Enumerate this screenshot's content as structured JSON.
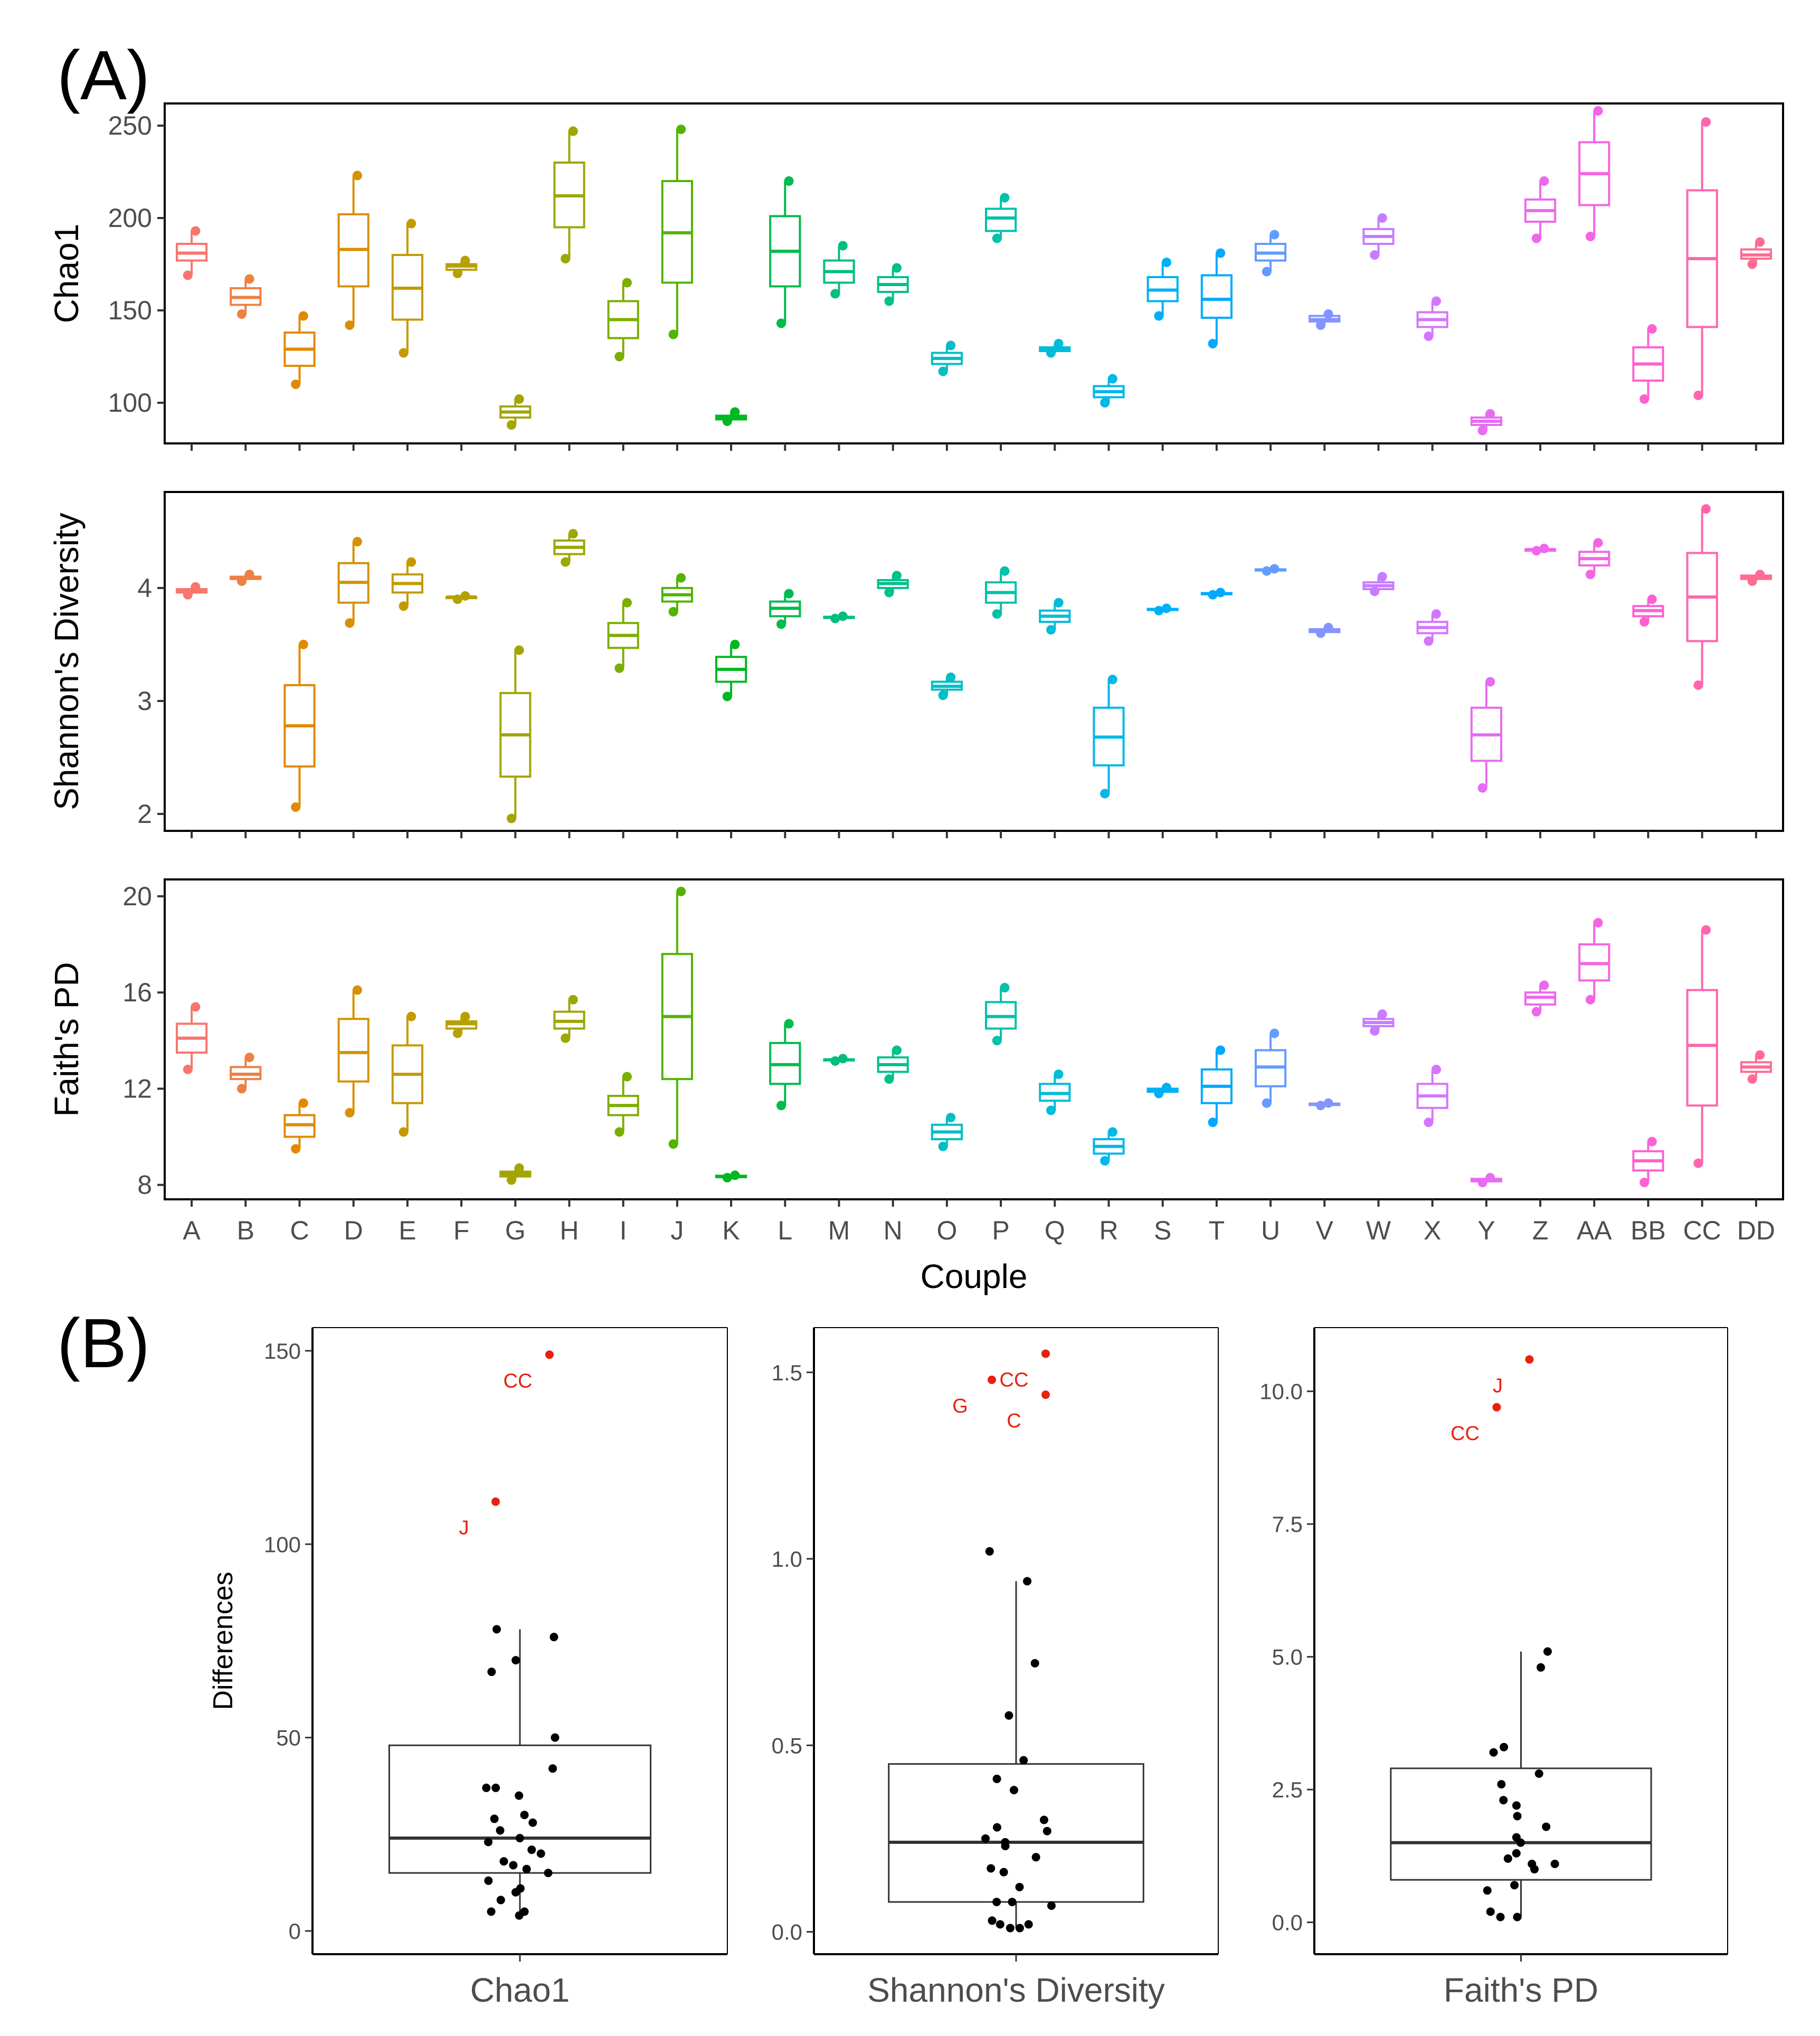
{
  "panel_labels": {
    "a": "(A)",
    "b": "(B)"
  },
  "chart_data": [
    {
      "type": "box",
      "panel": "A",
      "xlabel": "Couple",
      "categories": [
        "A",
        "B",
        "C",
        "D",
        "E",
        "F",
        "G",
        "H",
        "I",
        "J",
        "K",
        "L",
        "M",
        "N",
        "O",
        "P",
        "Q",
        "R",
        "S",
        "T",
        "U",
        "V",
        "W",
        "X",
        "Y",
        "Z",
        "AA",
        "BB",
        "CC",
        "DD"
      ],
      "colors": [
        "#F8766D",
        "#EE8043",
        "#E18A00",
        "#D89000",
        "#C49A00",
        "#B7A100",
        "#A3A500",
        "#9CA700",
        "#7CAE00",
        "#53B400",
        "#00B81F",
        "#00BB4E",
        "#00BF7D",
        "#00C08B",
        "#00BFC4",
        "#00C1A9",
        "#00BCD8",
        "#00B8E7",
        "#00B0F6",
        "#00A9FF",
        "#619CFF",
        "#8494FF",
        "#C77CFF",
        "#D575FE",
        "#E76BF3",
        "#ED68ED",
        "#F564E3",
        "#FD61D1",
        "#FF65AE",
        "#FF6C91"
      ],
      "facets": [
        {
          "ylabel": "Chao1",
          "ylim": [
            78,
            262
          ],
          "yticks": [
            100,
            150,
            200,
            250
          ],
          "ytick_labels": [
            "100",
            "150",
            "200",
            "250"
          ],
          "boxes": [
            [
              169,
              177,
              181,
              186,
              193
            ],
            [
              148,
              153,
              157,
              162,
              167
            ],
            [
              110,
              120,
              129,
              138,
              147
            ],
            [
              142,
              163,
              183,
              202,
              223
            ],
            [
              127,
              145,
              162,
              180,
              197
            ],
            [
              170,
              172,
              174,
              175,
              177
            ],
            [
              88,
              92,
              95,
              98,
              102
            ],
            [
              178,
              195,
              212,
              230,
              247
            ],
            [
              125,
              135,
              145,
              155,
              165
            ],
            [
              137,
              165,
              192,
              220,
              248
            ],
            [
              90,
              91,
              92,
              93,
              95
            ],
            [
              143,
              163,
              182,
              201,
              220
            ],
            [
              159,
              165,
              171,
              177,
              185
            ],
            [
              155,
              160,
              164,
              168,
              173
            ],
            [
              117,
              121,
              124,
              127,
              131
            ],
            [
              189,
              193,
              200,
              205,
              211
            ],
            [
              127,
              128,
              129,
              130,
              132
            ],
            [
              100,
              103,
              106,
              109,
              113
            ],
            [
              147,
              155,
              161,
              168,
              176
            ],
            [
              132,
              146,
              156,
              169,
              181
            ],
            [
              171,
              177,
              181,
              186,
              191
            ],
            [
              142,
              144,
              145,
              147,
              148
            ],
            [
              180,
              186,
              190,
              194,
              200
            ],
            [
              136,
              141,
              145,
              149,
              155
            ],
            [
              85,
              88,
              90,
              92,
              94
            ],
            [
              189,
              198,
              204,
              210,
              220
            ],
            [
              190,
              207,
              224,
              241,
              258
            ],
            [
              102,
              112,
              121,
              130,
              140
            ],
            [
              104,
              141,
              178,
              215,
              252
            ],
            [
              175,
              178,
              180,
              183,
              187
            ]
          ]
        },
        {
          "ylabel": "Shannon's Diversity",
          "ylim": [
            1.85,
            4.85
          ],
          "yticks": [
            2,
            3,
            4
          ],
          "ytick_labels": [
            "2",
            "3",
            "4"
          ],
          "boxes": [
            [
              3.94,
              3.96,
              3.98,
              3.99,
              4.01
            ],
            [
              4.06,
              4.08,
              4.09,
              4.1,
              4.12
            ],
            [
              2.06,
              2.42,
              2.78,
              3.14,
              3.5
            ],
            [
              3.69,
              3.87,
              4.05,
              4.22,
              4.41
            ],
            [
              3.84,
              3.96,
              4.04,
              4.12,
              4.23
            ],
            [
              3.9,
              3.91,
              3.92,
              3.92,
              3.93
            ],
            [
              1.96,
              2.33,
              2.7,
              3.07,
              3.45
            ],
            [
              4.23,
              4.3,
              4.36,
              4.42,
              4.48
            ],
            [
              3.29,
              3.47,
              3.58,
              3.69,
              3.87
            ],
            [
              3.79,
              3.88,
              3.94,
              4.0,
              4.09
            ],
            [
              3.04,
              3.17,
              3.28,
              3.39,
              3.5
            ],
            [
              3.68,
              3.75,
              3.82,
              3.88,
              3.95
            ],
            [
              3.73,
              3.735,
              3.74,
              3.745,
              3.75
            ],
            [
              3.96,
              4.0,
              4.04,
              4.07,
              4.11
            ],
            [
              3.05,
              3.1,
              3.13,
              3.17,
              3.21
            ],
            [
              3.77,
              3.87,
              3.96,
              4.05,
              4.15
            ],
            [
              3.63,
              3.7,
              3.75,
              3.8,
              3.87
            ],
            [
              2.18,
              2.43,
              2.68,
              2.94,
              3.19
            ],
            [
              3.8,
              3.805,
              3.81,
              3.815,
              3.82
            ],
            [
              3.94,
              3.945,
              3.95,
              3.955,
              3.96
            ],
            [
              4.15,
              4.155,
              4.16,
              4.165,
              4.17
            ],
            [
              3.6,
              3.61,
              3.62,
              3.635,
              3.65
            ],
            [
              3.97,
              3.99,
              4.02,
              4.05,
              4.1
            ],
            [
              3.53,
              3.6,
              3.65,
              3.7,
              3.77
            ],
            [
              2.23,
              2.47,
              2.7,
              2.94,
              3.17
            ],
            [
              4.33,
              4.33,
              4.34,
              4.34,
              4.35
            ],
            [
              4.12,
              4.2,
              4.26,
              4.32,
              4.4
            ],
            [
              3.7,
              3.75,
              3.8,
              3.84,
              3.9
            ],
            [
              3.14,
              3.53,
              3.92,
              4.31,
              4.7
            ],
            [
              4.06,
              4.08,
              4.1,
              4.11,
              4.12
            ]
          ]
        },
        {
          "ylabel": "Faith's PD",
          "ylim": [
            7.4,
            20.7
          ],
          "yticks": [
            8,
            12,
            16,
            20
          ],
          "ytick_labels": [
            "8",
            "12",
            "16",
            "20"
          ],
          "boxes": [
            [
              12.8,
              13.5,
              14.1,
              14.7,
              15.4
            ],
            [
              12.0,
              12.4,
              12.6,
              12.9,
              13.3
            ],
            [
              9.5,
              10.0,
              10.5,
              10.9,
              11.4
            ],
            [
              11.0,
              12.3,
              13.5,
              14.9,
              16.1
            ],
            [
              10.2,
              11.4,
              12.6,
              13.8,
              15.0
            ],
            [
              14.3,
              14.5,
              14.7,
              14.8,
              15.0
            ],
            [
              8.2,
              8.35,
              8.45,
              8.55,
              8.7
            ],
            [
              14.1,
              14.5,
              14.8,
              15.2,
              15.7
            ],
            [
              10.2,
              10.9,
              11.3,
              11.7,
              12.5
            ],
            [
              9.7,
              12.4,
              15.0,
              17.6,
              20.2
            ],
            [
              8.3,
              8.32,
              8.35,
              8.38,
              8.4
            ],
            [
              11.3,
              12.2,
              13.0,
              13.9,
              14.7
            ],
            [
              13.15,
              13.18,
              13.2,
              13.22,
              13.25
            ],
            [
              12.4,
              12.7,
              13.0,
              13.3,
              13.6
            ],
            [
              9.6,
              9.9,
              10.2,
              10.5,
              10.8
            ],
            [
              14.0,
              14.5,
              15.0,
              15.6,
              16.2
            ],
            [
              11.1,
              11.5,
              11.8,
              12.2,
              12.6
            ],
            [
              9.0,
              9.3,
              9.6,
              9.9,
              10.2
            ],
            [
              11.8,
              11.87,
              11.95,
              12.0,
              12.05
            ],
            [
              10.6,
              11.4,
              12.1,
              12.8,
              13.6
            ],
            [
              11.4,
              12.1,
              12.9,
              13.6,
              14.3
            ],
            [
              11.3,
              11.32,
              11.35,
              11.38,
              11.4
            ],
            [
              14.4,
              14.6,
              14.75,
              14.9,
              15.1
            ],
            [
              10.6,
              11.2,
              11.7,
              12.2,
              12.8
            ],
            [
              8.1,
              8.15,
              8.2,
              8.25,
              8.3
            ],
            [
              15.2,
              15.5,
              15.8,
              16.0,
              16.3
            ],
            [
              15.7,
              16.5,
              17.2,
              18.0,
              18.9
            ],
            [
              8.1,
              8.6,
              9.0,
              9.4,
              9.8
            ],
            [
              8.9,
              11.3,
              13.8,
              16.1,
              18.6
            ],
            [
              12.4,
              12.7,
              12.9,
              13.1,
              13.4
            ]
          ]
        }
      ]
    },
    {
      "type": "box",
      "panel": "B",
      "ylabel": "Differences",
      "facets": [
        {
          "category": "Chao1",
          "ylim": [
            -6,
            156
          ],
          "yticks": [
            0,
            50,
            100,
            150
          ],
          "ytick_labels": [
            "0",
            "50",
            "100",
            "150"
          ],
          "box": [
            4,
            15,
            24,
            48,
            78
          ],
          "points": [
            4,
            5,
            5,
            8,
            10,
            11,
            13,
            15,
            16,
            17,
            18,
            20,
            21,
            23,
            24,
            26,
            28,
            29,
            30,
            35,
            37,
            37,
            42,
            50,
            67,
            70,
            76,
            78
          ],
          "outliers": [
            {
              "label": "CC",
              "value": 149
            },
            {
              "label": "J",
              "value": 111
            }
          ]
        },
        {
          "category": "Shannon's Diversity",
          "ylim": [
            -0.06,
            1.62
          ],
          "yticks": [
            0.0,
            0.5,
            1.0,
            1.5
          ],
          "ytick_labels": [
            "0.0",
            "0.5",
            "1.0",
            "1.5"
          ],
          "box": [
            0.01,
            0.08,
            0.24,
            0.45,
            0.94
          ],
          "points": [
            0.01,
            0.01,
            0.02,
            0.02,
            0.03,
            0.07,
            0.08,
            0.08,
            0.12,
            0.16,
            0.17,
            0.2,
            0.23,
            0.24,
            0.25,
            0.27,
            0.28,
            0.3,
            0.38,
            0.41,
            0.46,
            0.58,
            0.72,
            0.94,
            1.02
          ],
          "outliers": [
            {
              "label": "CC",
              "value": 1.55
            },
            {
              "label": "G",
              "value": 1.48
            },
            {
              "label": "C",
              "value": 1.44
            }
          ]
        },
        {
          "category": "Faith's PD",
          "ylim": [
            -0.6,
            11.2
          ],
          "yticks": [
            0.0,
            2.5,
            5.0,
            7.5,
            10.0
          ],
          "ytick_labels": [
            "0.0",
            "2.5",
            "5.0",
            "7.5",
            "10.0"
          ],
          "box": [
            0.1,
            0.8,
            1.5,
            2.9,
            5.1
          ],
          "points": [
            0.1,
            0.1,
            0.2,
            0.6,
            0.7,
            1.0,
            1.1,
            1.1,
            1.2,
            1.3,
            1.5,
            1.6,
            1.8,
            2.0,
            2.2,
            2.3,
            2.6,
            2.8,
            3.2,
            3.3,
            4.8,
            5.1
          ],
          "outliers": [
            {
              "label": "J",
              "value": 10.6
            },
            {
              "label": "CC",
              "value": 9.7
            }
          ]
        }
      ]
    }
  ]
}
